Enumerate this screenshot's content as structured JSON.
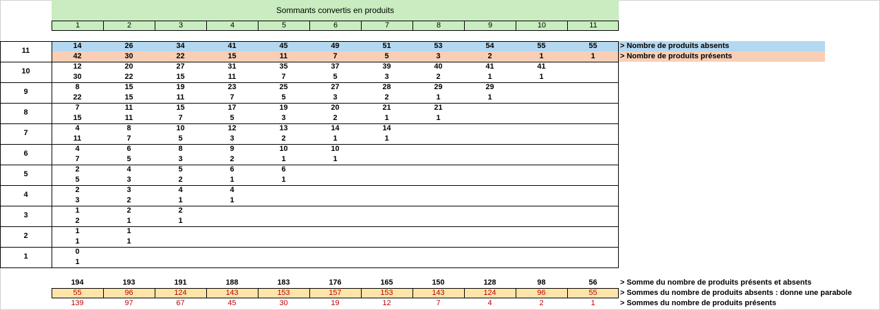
{
  "title": "Sommants convertis en produits",
  "columns": [
    "1",
    "2",
    "3",
    "4",
    "5",
    "6",
    "7",
    "8",
    "9",
    "10",
    "11"
  ],
  "rows": [
    {
      "label": "11",
      "absent": [
        "14",
        "26",
        "34",
        "41",
        "45",
        "49",
        "51",
        "53",
        "54",
        "55",
        "55"
      ],
      "present": [
        "42",
        "30",
        "22",
        "15",
        "11",
        "7",
        "5",
        "3",
        "2",
        "1",
        "1"
      ]
    },
    {
      "label": "10",
      "absent": [
        "12",
        "20",
        "27",
        "31",
        "35",
        "37",
        "39",
        "40",
        "41",
        "41"
      ],
      "present": [
        "30",
        "22",
        "15",
        "11",
        "7",
        "5",
        "3",
        "2",
        "1",
        "1"
      ]
    },
    {
      "label": "9",
      "absent": [
        "8",
        "15",
        "19",
        "23",
        "25",
        "27",
        "28",
        "29",
        "29"
      ],
      "present": [
        "22",
        "15",
        "11",
        "7",
        "5",
        "3",
        "2",
        "1",
        "1"
      ]
    },
    {
      "label": "8",
      "absent": [
        "7",
        "11",
        "15",
        "17",
        "19",
        "20",
        "21",
        "21"
      ],
      "present": [
        "15",
        "11",
        "7",
        "5",
        "3",
        "2",
        "1",
        "1"
      ]
    },
    {
      "label": "7",
      "absent": [
        "4",
        "8",
        "10",
        "12",
        "13",
        "14",
        "14"
      ],
      "present": [
        "11",
        "7",
        "5",
        "3",
        "2",
        "1",
        "1"
      ]
    },
    {
      "label": "6",
      "absent": [
        "4",
        "6",
        "8",
        "9",
        "10",
        "10"
      ],
      "present": [
        "7",
        "5",
        "3",
        "2",
        "1",
        "1"
      ]
    },
    {
      "label": "5",
      "absent": [
        "2",
        "4",
        "5",
        "6",
        "6"
      ],
      "present": [
        "5",
        "3",
        "2",
        "1",
        "1"
      ]
    },
    {
      "label": "4",
      "absent": [
        "2",
        "3",
        "4",
        "4"
      ],
      "present": [
        "3",
        "2",
        "1",
        "1"
      ]
    },
    {
      "label": "3",
      "absent": [
        "1",
        "2",
        "2"
      ],
      "present": [
        "2",
        "1",
        "1"
      ]
    },
    {
      "label": "2",
      "absent": [
        "1",
        "1"
      ],
      "present": [
        "1",
        "1"
      ]
    },
    {
      "label": "1",
      "absent": [
        "0"
      ],
      "present": [
        "1"
      ]
    }
  ],
  "legend_absent": "> Nombre de produits absents",
  "legend_present": "> Nombre de produits présents",
  "sum_total": [
    "194",
    "193",
    "191",
    "188",
    "183",
    "176",
    "165",
    "150",
    "128",
    "98",
    "56"
  ],
  "sum_absent": [
    "55",
    "96",
    "124",
    "143",
    "153",
    "157",
    "153",
    "143",
    "124",
    "96",
    "55"
  ],
  "sum_present": [
    "139",
    "97",
    "67",
    "45",
    "30",
    "19",
    "12",
    "7",
    "4",
    "2",
    "1"
  ],
  "legend_sum_total": "> Somme du nombre de produits présents et absents",
  "legend_sum_absent": "> Sommes du nombre de produits absents : donne une parabole",
  "legend_sum_present": "> Sommes du nombre de produits présents",
  "colors": {
    "title_band": "#c9edc0",
    "absent_band": "#b4d8f0",
    "present_band": "#f8cfb6",
    "sum_band": "#fde4a8",
    "red_text": "#c00000"
  }
}
